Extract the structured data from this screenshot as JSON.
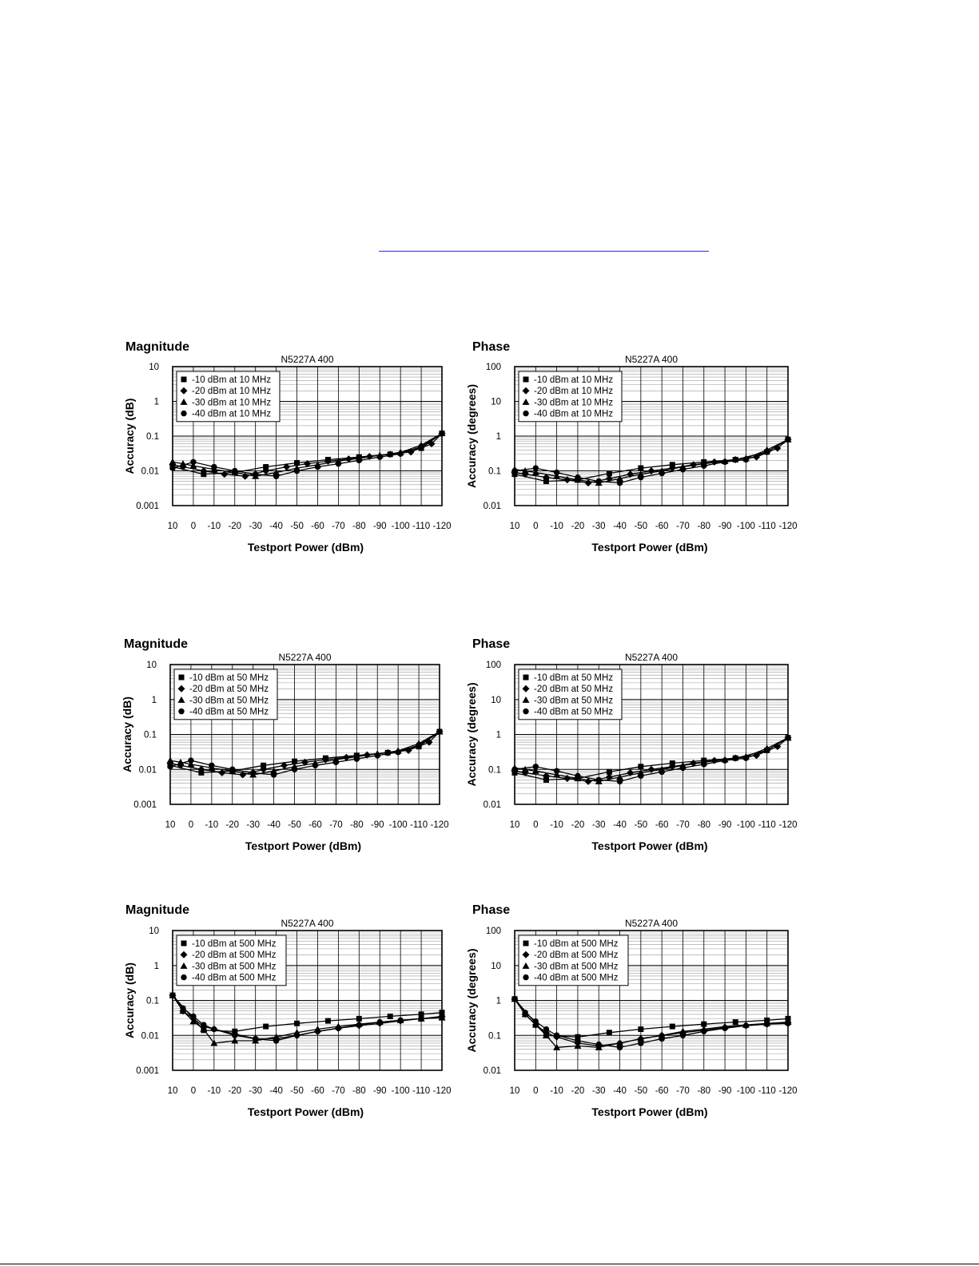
{
  "page": {
    "link_color": "#2d2dd6",
    "line_color": "#000000",
    "grid_color": "#9a9a9a"
  },
  "chart_data": [
    {
      "type": "line",
      "heading": "Magnitude",
      "title": "N5227A 400",
      "xlabel": "Testport Power (dBm)",
      "ylabel": "Accuracy (dB)",
      "yscale": "log",
      "ylim": [
        0.001,
        10
      ],
      "yticks": [
        "10",
        "1",
        "0.1",
        "0.01",
        "0.001"
      ],
      "xlim": [
        10,
        -120
      ],
      "xticks": [
        "10",
        "0",
        "-10",
        "-20",
        "-30",
        "-40",
        "-50",
        "-60",
        "-70",
        "-80",
        "-90",
        "-100",
        "-110",
        "-120"
      ],
      "grid": true,
      "legend_position": "top-left",
      "series": [
        {
          "name": "-10 dBm at 10 MHz",
          "marker": "square",
          "x": [
            10,
            -5,
            -20,
            -35,
            -50,
            -65,
            -80,
            -95,
            -110,
            -120
          ],
          "y": [
            0.013,
            0.008,
            0.009,
            0.013,
            0.017,
            0.021,
            0.025,
            0.03,
            0.045,
            0.12
          ]
        },
        {
          "name": "-20 dBm at 10 MHz",
          "marker": "diamond",
          "x": [
            10,
            5,
            -5,
            -15,
            -25,
            -35,
            -45,
            -55,
            -65,
            -75,
            -85,
            -95,
            -105,
            -115,
            -120
          ],
          "y": [
            0.015,
            0.013,
            0.01,
            0.008,
            0.007,
            0.01,
            0.013,
            0.016,
            0.019,
            0.022,
            0.026,
            0.03,
            0.035,
            0.06,
            0.12
          ]
        },
        {
          "name": "-30 dBm at 10 MHz",
          "marker": "triangle",
          "x": [
            10,
            5,
            0,
            -10,
            -20,
            -30,
            -40,
            -50,
            -60,
            -70,
            -80,
            -90,
            -100,
            -110,
            -120
          ],
          "y": [
            0.018,
            0.016,
            0.014,
            0.011,
            0.009,
            0.007,
            0.009,
            0.012,
            0.015,
            0.019,
            0.023,
            0.028,
            0.034,
            0.055,
            0.12
          ]
        },
        {
          "name": "-40 dBm at 10 MHz",
          "marker": "circle",
          "x": [
            10,
            0,
            -10,
            -20,
            -30,
            -40,
            -50,
            -60,
            -70,
            -80,
            -90,
            -100,
            -110,
            -120
          ],
          "y": [
            0.012,
            0.018,
            0.013,
            0.01,
            0.008,
            0.007,
            0.01,
            0.013,
            0.016,
            0.02,
            0.025,
            0.031,
            0.05,
            0.12
          ]
        }
      ]
    },
    {
      "type": "line",
      "heading": "Phase",
      "title": "N5227A 400",
      "xlabel": "Testport Power (dBm)",
      "ylabel": "Accuracy (degrees)",
      "yscale": "log",
      "ylim": [
        0.01,
        100
      ],
      "yticks": [
        "100",
        "10",
        "1",
        "0.1",
        "0.01"
      ],
      "xlim": [
        10,
        -120
      ],
      "xticks": [
        "10",
        "0",
        "-10",
        "-20",
        "-30",
        "-40",
        "-50",
        "-60",
        "-70",
        "-80",
        "-90",
        "-100",
        "-110",
        "-120"
      ],
      "grid": true,
      "legend_position": "top-left",
      "series": [
        {
          "name": "-10 dBm at 10 MHz",
          "marker": "square",
          "x": [
            10,
            -5,
            -20,
            -35,
            -50,
            -65,
            -80,
            -95,
            -110,
            -120
          ],
          "y": [
            0.08,
            0.05,
            0.055,
            0.085,
            0.12,
            0.15,
            0.18,
            0.21,
            0.35,
            0.8
          ]
        },
        {
          "name": "-20 dBm at 10 MHz",
          "marker": "diamond",
          "x": [
            10,
            5,
            -5,
            -15,
            -25,
            -35,
            -45,
            -55,
            -65,
            -75,
            -85,
            -95,
            -105,
            -115,
            -120
          ],
          "y": [
            0.09,
            0.08,
            0.065,
            0.055,
            0.045,
            0.06,
            0.08,
            0.1,
            0.12,
            0.15,
            0.18,
            0.21,
            0.25,
            0.45,
            0.8
          ]
        },
        {
          "name": "-30 dBm at 10 MHz",
          "marker": "triangle",
          "x": [
            10,
            5,
            0,
            -10,
            -20,
            -30,
            -40,
            -50,
            -60,
            -70,
            -80,
            -90,
            -100,
            -110,
            -120
          ],
          "y": [
            0.11,
            0.1,
            0.09,
            0.07,
            0.055,
            0.045,
            0.06,
            0.08,
            0.1,
            0.13,
            0.16,
            0.19,
            0.23,
            0.4,
            0.8
          ]
        },
        {
          "name": "-40 dBm at 10 MHz",
          "marker": "circle",
          "x": [
            10,
            0,
            -10,
            -20,
            -30,
            -40,
            -50,
            -60,
            -70,
            -80,
            -90,
            -100,
            -110,
            -120
          ],
          "y": [
            0.1,
            0.12,
            0.09,
            0.065,
            0.05,
            0.045,
            0.065,
            0.085,
            0.11,
            0.14,
            0.18,
            0.21,
            0.35,
            0.8
          ]
        }
      ]
    },
    {
      "type": "line",
      "heading": "Magnitude",
      "title": "N5227A 400",
      "xlabel": "Testport Power (dBm)",
      "ylabel": "Accuracy (dB)",
      "yscale": "log",
      "ylim": [
        0.001,
        10
      ],
      "yticks": [
        "10",
        "1",
        "0.1",
        "0.01",
        "0.001"
      ],
      "xlim": [
        10,
        -120
      ],
      "xticks": [
        "10",
        "0",
        "-10",
        "-20",
        "-30",
        "-40",
        "-50",
        "-60",
        "-70",
        "-80",
        "-90",
        "-100",
        "-110",
        "-120"
      ],
      "grid": true,
      "legend_position": "top-left",
      "series": [
        {
          "name": "-10 dBm at 50 MHz",
          "marker": "square",
          "x": [
            10,
            -5,
            -20,
            -35,
            -50,
            -65,
            -80,
            -95,
            -110,
            -120
          ],
          "y": [
            0.013,
            0.008,
            0.009,
            0.013,
            0.017,
            0.021,
            0.025,
            0.03,
            0.045,
            0.12
          ]
        },
        {
          "name": "-20 dBm at 50 MHz",
          "marker": "diamond",
          "x": [
            10,
            5,
            -5,
            -15,
            -25,
            -35,
            -45,
            -55,
            -65,
            -75,
            -85,
            -95,
            -105,
            -115,
            -120
          ],
          "y": [
            0.015,
            0.013,
            0.01,
            0.008,
            0.007,
            0.01,
            0.013,
            0.016,
            0.019,
            0.022,
            0.026,
            0.03,
            0.035,
            0.06,
            0.12
          ]
        },
        {
          "name": "-30 dBm at 50 MHz",
          "marker": "triangle",
          "x": [
            10,
            5,
            0,
            -10,
            -20,
            -30,
            -40,
            -50,
            -60,
            -70,
            -80,
            -90,
            -100,
            -110,
            -120
          ],
          "y": [
            0.018,
            0.016,
            0.014,
            0.011,
            0.009,
            0.007,
            0.009,
            0.012,
            0.015,
            0.019,
            0.023,
            0.028,
            0.034,
            0.055,
            0.12
          ]
        },
        {
          "name": "-40 dBm at 50 MHz",
          "marker": "circle",
          "x": [
            10,
            0,
            -10,
            -20,
            -30,
            -40,
            -50,
            -60,
            -70,
            -80,
            -90,
            -100,
            -110,
            -120
          ],
          "y": [
            0.012,
            0.018,
            0.013,
            0.01,
            0.008,
            0.007,
            0.01,
            0.013,
            0.016,
            0.02,
            0.025,
            0.031,
            0.05,
            0.12
          ]
        }
      ]
    },
    {
      "type": "line",
      "heading": "Phase",
      "title": "N5227A 400",
      "xlabel": "Testport Power (dBm)",
      "ylabel": "Accuracy (degrees)",
      "yscale": "log",
      "ylim": [
        0.01,
        100
      ],
      "yticks": [
        "100",
        "10",
        "1",
        "0.1",
        "0.01"
      ],
      "xlim": [
        10,
        -120
      ],
      "xticks": [
        "10",
        "0",
        "-10",
        "-20",
        "-30",
        "-40",
        "-50",
        "-60",
        "-70",
        "-80",
        "-90",
        "-100",
        "-110",
        "-120"
      ],
      "grid": true,
      "legend_position": "top-left",
      "series": [
        {
          "name": "-10 dBm at 50 MHz",
          "marker": "square",
          "x": [
            10,
            -5,
            -20,
            -35,
            -50,
            -65,
            -80,
            -95,
            -110,
            -120
          ],
          "y": [
            0.08,
            0.05,
            0.055,
            0.085,
            0.12,
            0.15,
            0.18,
            0.21,
            0.35,
            0.8
          ]
        },
        {
          "name": "-20 dBm at 50 MHz",
          "marker": "diamond",
          "x": [
            10,
            5,
            -5,
            -15,
            -25,
            -35,
            -45,
            -55,
            -65,
            -75,
            -85,
            -95,
            -105,
            -115,
            -120
          ],
          "y": [
            0.09,
            0.08,
            0.065,
            0.055,
            0.045,
            0.06,
            0.08,
            0.1,
            0.12,
            0.15,
            0.18,
            0.21,
            0.25,
            0.45,
            0.8
          ]
        },
        {
          "name": "-30 dBm at 50 MHz",
          "marker": "triangle",
          "x": [
            10,
            5,
            0,
            -10,
            -20,
            -30,
            -40,
            -50,
            -60,
            -70,
            -80,
            -90,
            -100,
            -110,
            -120
          ],
          "y": [
            0.11,
            0.1,
            0.09,
            0.07,
            0.055,
            0.045,
            0.06,
            0.08,
            0.1,
            0.13,
            0.16,
            0.19,
            0.23,
            0.4,
            0.8
          ]
        },
        {
          "name": "-40 dBm at 50 MHz",
          "marker": "circle",
          "x": [
            10,
            0,
            -10,
            -20,
            -30,
            -40,
            -50,
            -60,
            -70,
            -80,
            -90,
            -100,
            -110,
            -120
          ],
          "y": [
            0.1,
            0.12,
            0.09,
            0.065,
            0.05,
            0.045,
            0.065,
            0.085,
            0.11,
            0.14,
            0.18,
            0.21,
            0.35,
            0.8
          ]
        }
      ]
    },
    {
      "type": "line",
      "heading": "Magnitude",
      "title": "N5227A 400",
      "xlabel": "Testport Power (dBm)",
      "ylabel": "Accuracy (dB)",
      "yscale": "log",
      "ylim": [
        0.001,
        10
      ],
      "yticks": [
        "10",
        "1",
        "0.1",
        "0.01",
        "0.001"
      ],
      "xlim": [
        10,
        -120
      ],
      "xticks": [
        "10",
        "0",
        "-10",
        "-20",
        "-30",
        "-40",
        "-50",
        "-60",
        "-70",
        "-80",
        "-90",
        "-100",
        "-110",
        "-120"
      ],
      "grid": true,
      "legend_position": "top-left",
      "series": [
        {
          "name": "-10 dBm at 500 MHz",
          "marker": "square",
          "x": [
            10,
            -5,
            -20,
            -35,
            -50,
            -65,
            -80,
            -95,
            -110,
            -120
          ],
          "y": [
            0.14,
            0.014,
            0.013,
            0.018,
            0.022,
            0.026,
            0.03,
            0.035,
            0.04,
            0.045
          ]
        },
        {
          "name": "-20 dBm at 500 MHz",
          "marker": "diamond",
          "x": [
            10,
            5,
            0,
            -5,
            -10,
            -20,
            -30,
            -40,
            -50,
            -60,
            -70,
            -80,
            -90,
            -100,
            -110,
            -120
          ],
          "y": [
            0.14,
            0.05,
            0.03,
            0.018,
            0.015,
            0.011,
            0.008,
            0.008,
            0.01,
            0.013,
            0.016,
            0.019,
            0.022,
            0.026,
            0.03,
            0.035
          ]
        },
        {
          "name": "-30 dBm at 500 MHz",
          "marker": "triangle",
          "x": [
            10,
            5,
            0,
            -5,
            -10,
            -20,
            -30,
            -40,
            -50,
            -60,
            -70,
            -80,
            -90,
            -100,
            -110,
            -120
          ],
          "y": [
            0.14,
            0.05,
            0.025,
            0.015,
            0.006,
            0.007,
            0.007,
            0.009,
            0.012,
            0.015,
            0.018,
            0.021,
            0.024,
            0.027,
            0.03,
            0.032
          ]
        },
        {
          "name": "-40 dBm at 500 MHz",
          "marker": "circle",
          "x": [
            10,
            5,
            0,
            -5,
            -10,
            -20,
            -30,
            -40,
            -50,
            -60,
            -70,
            -80,
            -90,
            -100,
            -110,
            -120
          ],
          "y": [
            0.14,
            0.06,
            0.035,
            0.02,
            0.015,
            0.01,
            0.008,
            0.007,
            0.01,
            0.013,
            0.016,
            0.02,
            0.024,
            0.027,
            0.03,
            0.032
          ]
        }
      ]
    },
    {
      "type": "line",
      "heading": "Phase",
      "title": "N5227A 400",
      "xlabel": "Testport Power (dBm)",
      "ylabel": "Accuracy (degrees)",
      "yscale": "log",
      "ylim": [
        0.01,
        100
      ],
      "yticks": [
        "100",
        "10",
        "1",
        "0.1",
        "0.01"
      ],
      "xlim": [
        10,
        -120
      ],
      "xticks": [
        "10",
        "0",
        "-10",
        "-20",
        "-30",
        "-40",
        "-50",
        "-60",
        "-70",
        "-80",
        "-90",
        "-100",
        "-110",
        "-120"
      ],
      "grid": true,
      "legend_position": "top-left",
      "series": [
        {
          "name": "-10 dBm at 500 MHz",
          "marker": "square",
          "x": [
            10,
            -5,
            -20,
            -35,
            -50,
            -65,
            -80,
            -95,
            -110,
            -120
          ],
          "y": [
            1.1,
            0.1,
            0.09,
            0.12,
            0.15,
            0.18,
            0.21,
            0.24,
            0.27,
            0.3
          ]
        },
        {
          "name": "-20 dBm at 500 MHz",
          "marker": "diamond",
          "x": [
            10,
            5,
            0,
            -5,
            -10,
            -20,
            -30,
            -40,
            -50,
            -60,
            -70,
            -80,
            -90,
            -100,
            -110,
            -120
          ],
          "y": [
            1.1,
            0.4,
            0.2,
            0.12,
            0.09,
            0.06,
            0.05,
            0.06,
            0.08,
            0.1,
            0.12,
            0.14,
            0.17,
            0.19,
            0.21,
            0.23
          ]
        },
        {
          "name": "-30 dBm at 500 MHz",
          "marker": "triangle",
          "x": [
            10,
            5,
            0,
            -5,
            -10,
            -20,
            -30,
            -40,
            -50,
            -60,
            -70,
            -80,
            -90,
            -100,
            -110,
            -120
          ],
          "y": [
            1.1,
            0.4,
            0.2,
            0.1,
            0.045,
            0.05,
            0.045,
            0.06,
            0.08,
            0.1,
            0.13,
            0.15,
            0.18,
            0.2,
            0.22,
            0.24
          ]
        },
        {
          "name": "-40 dBm at 500 MHz",
          "marker": "circle",
          "x": [
            10,
            5,
            0,
            -5,
            -10,
            -20,
            -30,
            -40,
            -50,
            -60,
            -70,
            -80,
            -90,
            -100,
            -110,
            -120
          ],
          "y": [
            1.1,
            0.45,
            0.25,
            0.15,
            0.1,
            0.07,
            0.055,
            0.045,
            0.06,
            0.08,
            0.1,
            0.13,
            0.16,
            0.19,
            0.21,
            0.22
          ]
        }
      ]
    }
  ]
}
